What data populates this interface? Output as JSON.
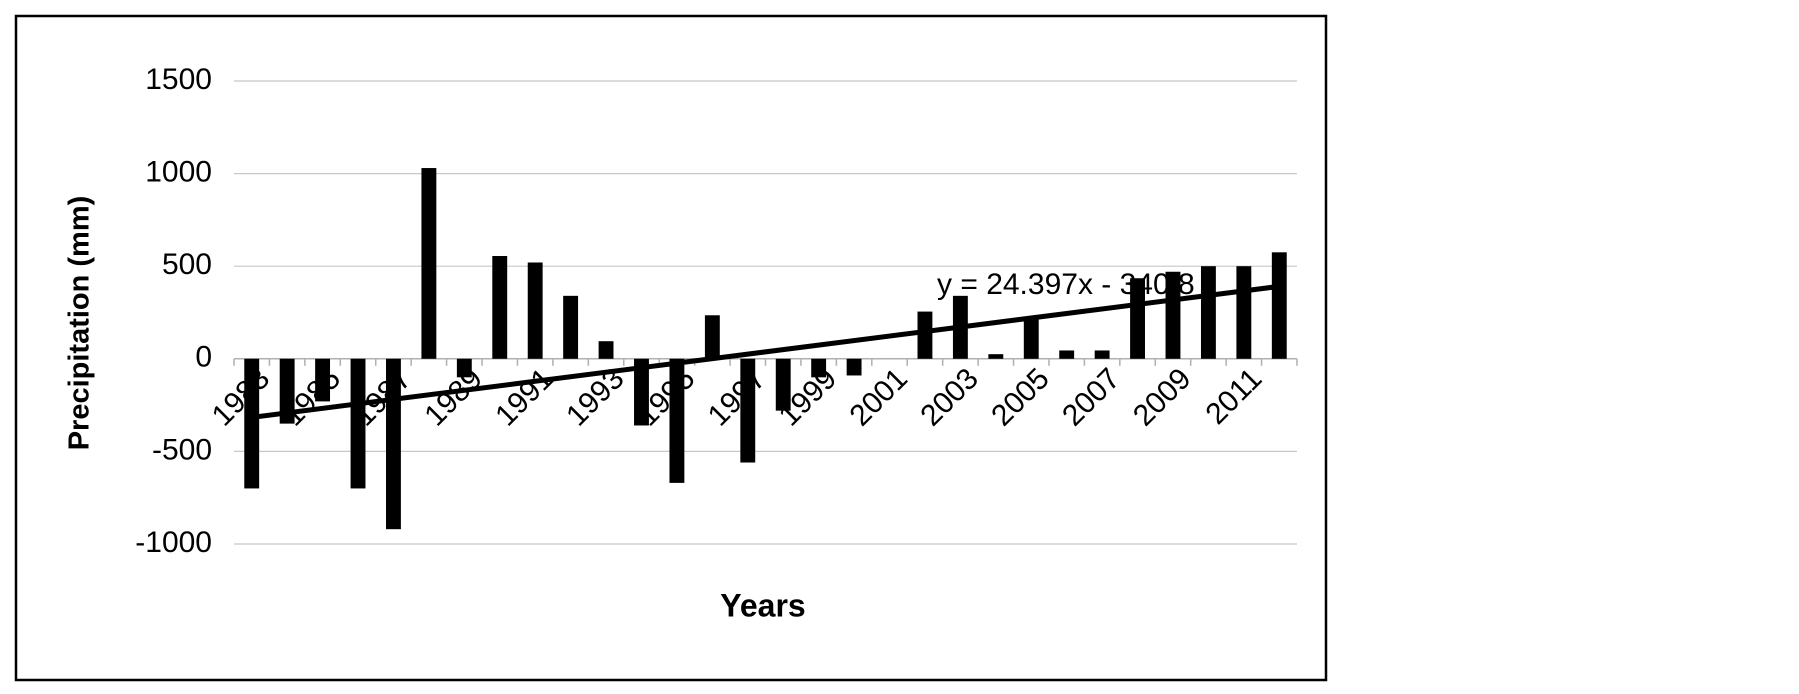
{
  "chart_data": {
    "type": "bar",
    "x_label": "Years",
    "y_label": "Precipitation (mm)",
    "categories": [
      "1983",
      null,
      "1985",
      null,
      "1987",
      null,
      "1989",
      null,
      "1991",
      null,
      "1993",
      null,
      "1995",
      null,
      "1997",
      null,
      "1999",
      null,
      "2001",
      null,
      "2003",
      null,
      "2005",
      null,
      "2007",
      null,
      "2009",
      null,
      "2011",
      null
    ],
    "values": [
      -700,
      -350,
      -230,
      -700,
      -920,
      1030,
      -100,
      555,
      520,
      340,
      95,
      -360,
      -670,
      235,
      -560,
      -280,
      -100,
      -90,
      0,
      255,
      340,
      25,
      220,
      45,
      45,
      435,
      470,
      500,
      500,
      575
    ],
    "color": "#000000",
    "ylim": [
      -1000,
      1500
    ],
    "yticks": [
      -1000,
      -500,
      0,
      500,
      1000,
      1500
    ],
    "grid": true,
    "trendline": {
      "label": "y = 24.397x - 340.8",
      "slope": 24.397,
      "intercept": -340.8,
      "color": "#000000"
    }
  }
}
